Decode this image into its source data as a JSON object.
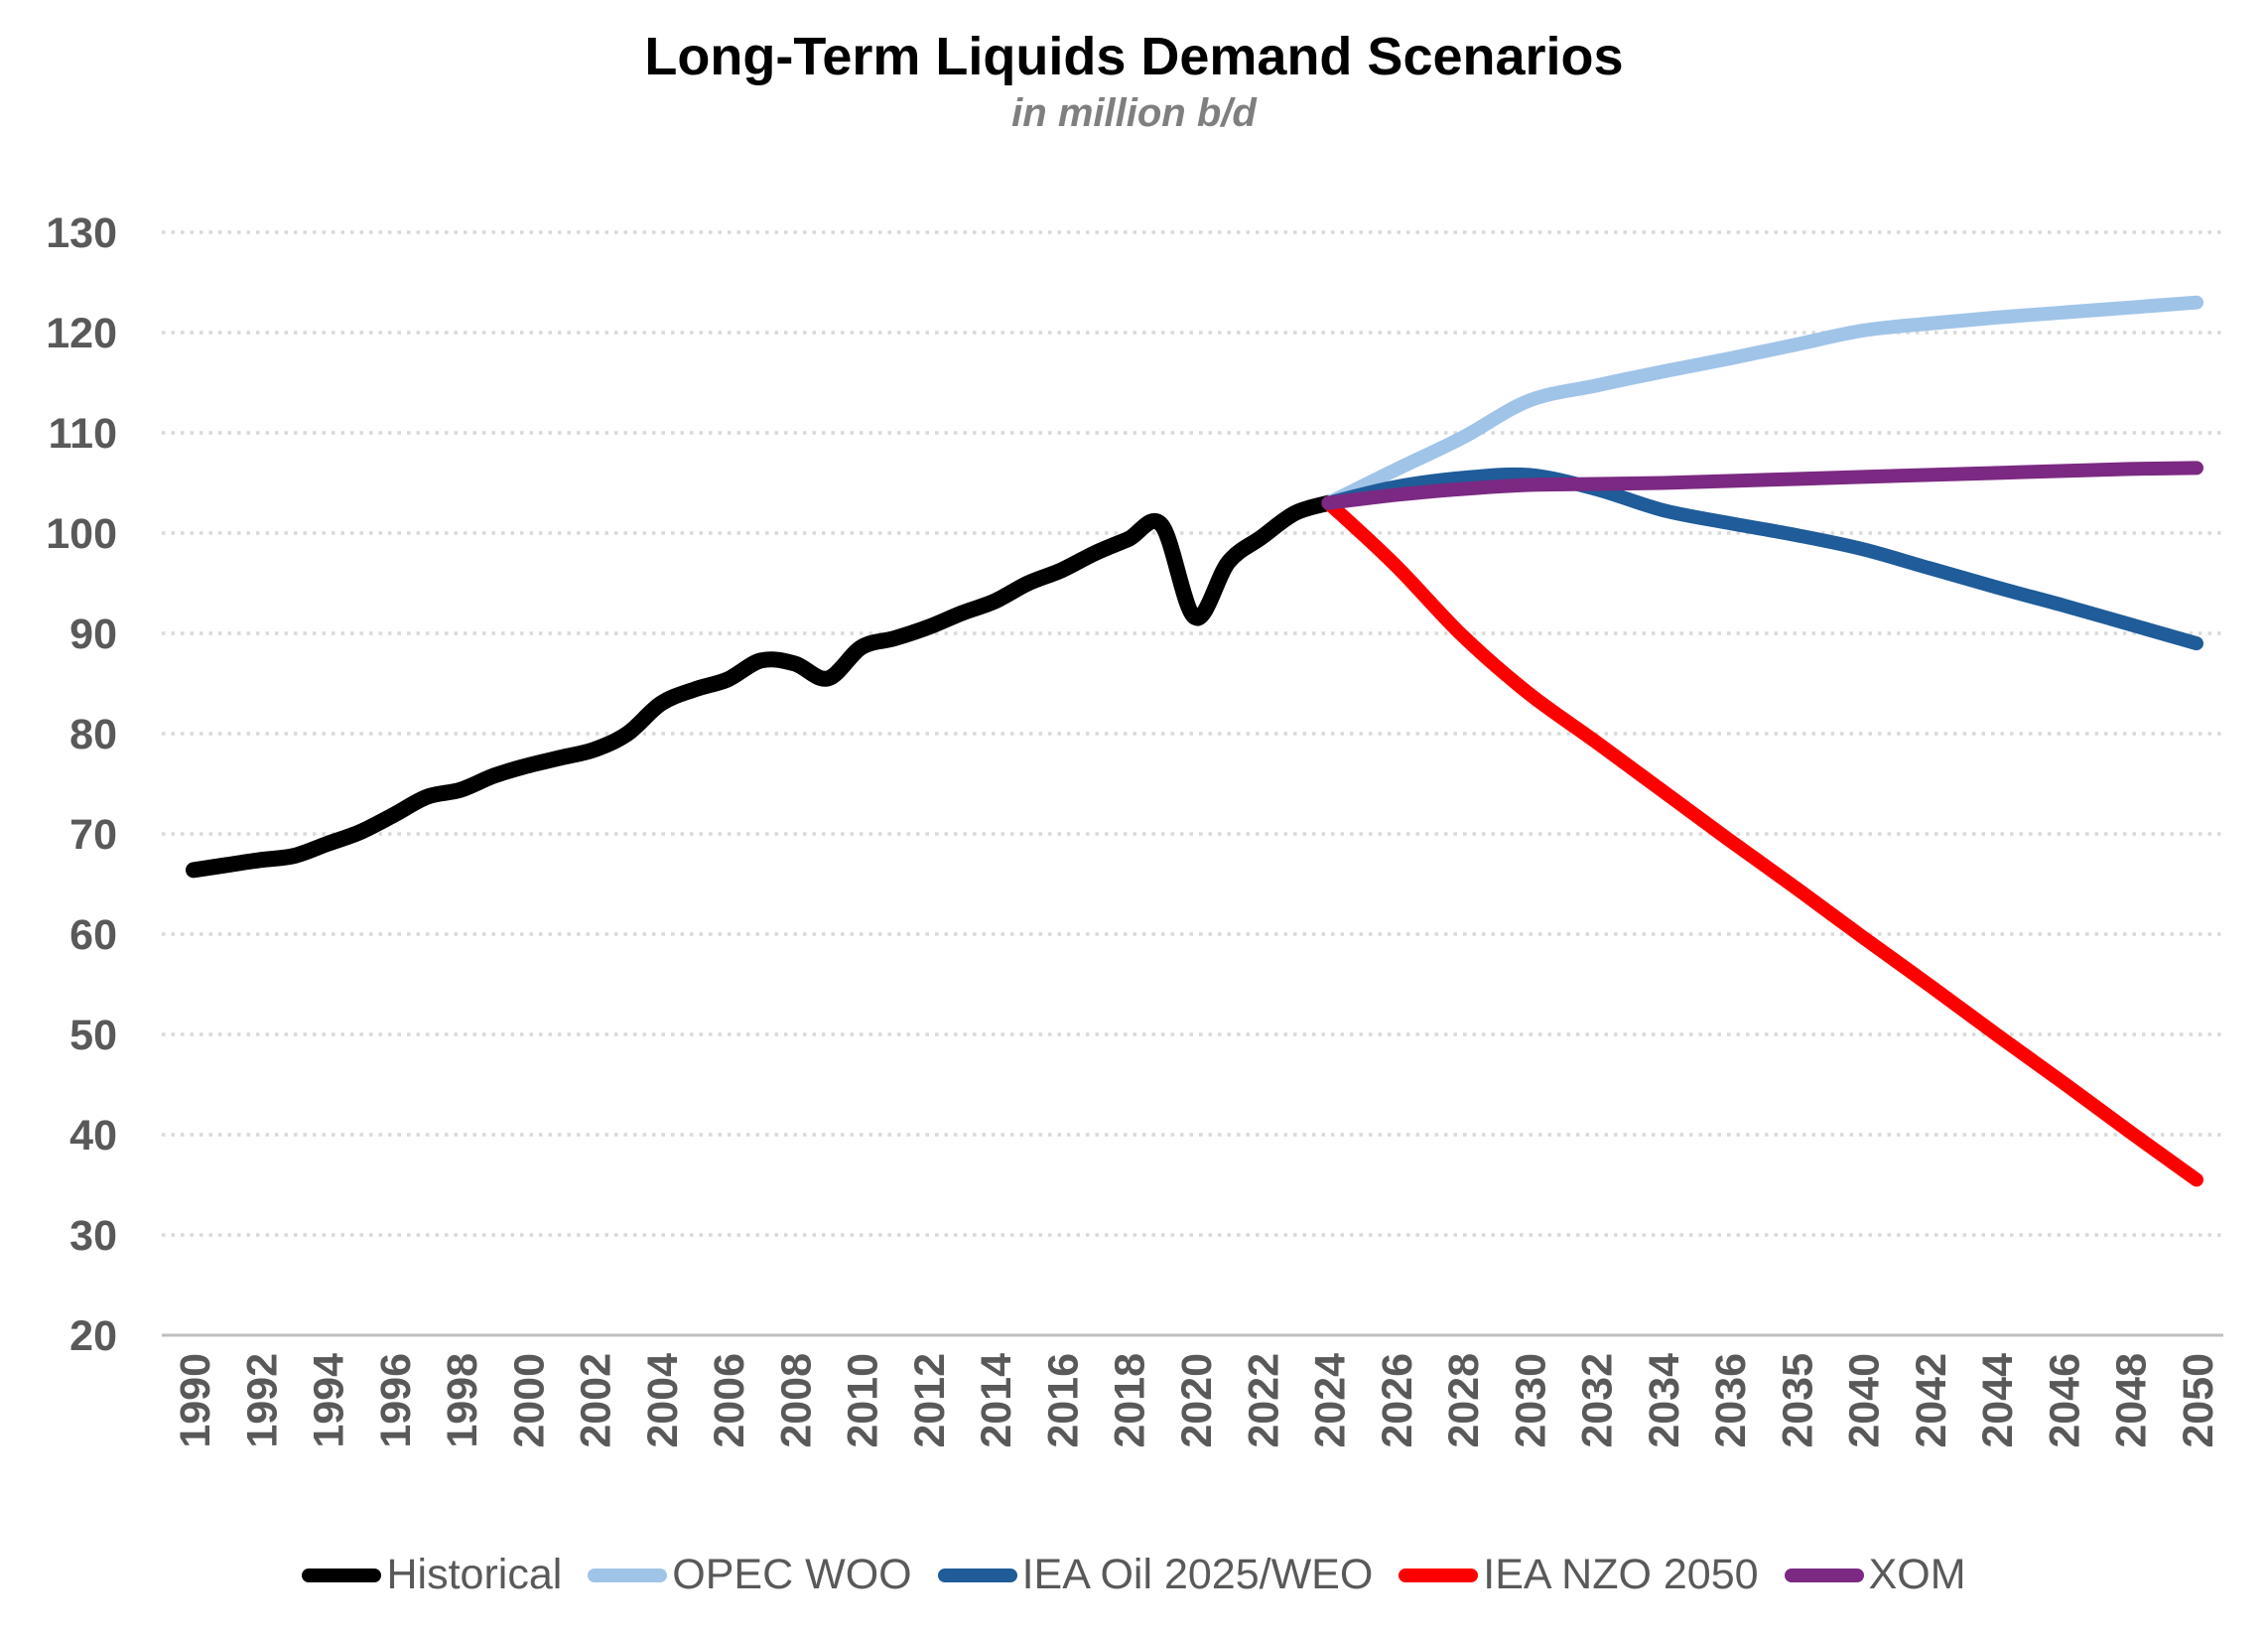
{
  "title": "Long-Term Liquids Demand Scenarios",
  "subtitle": "in million b/d",
  "chart_data": {
    "type": "line",
    "title": "Long-Term Liquids Demand Scenarios",
    "subtitle": "in million b/d",
    "ylabel": "",
    "xlabel": "",
    "ylim": [
      20,
      130
    ],
    "y_ticks": [
      20,
      30,
      40,
      50,
      60,
      70,
      80,
      90,
      100,
      110,
      120,
      130
    ],
    "x_range": [
      1990,
      2050
    ],
    "x_tick_labels": [
      "1990",
      "1992",
      "1994",
      "1996",
      "1998",
      "2000",
      "2002",
      "2004",
      "2006",
      "2008",
      "2010",
      "2012",
      "2014",
      "2016",
      "2018",
      "2020",
      "2022",
      "2024",
      "2026",
      "2028",
      "2030",
      "2032",
      "2034",
      "2036",
      "2035",
      "2040",
      "2042",
      "2044",
      "2046",
      "2048",
      "2050"
    ],
    "grid": "horizontal-dotted",
    "grid_color": "#d9d9d9",
    "axis_line_color": "#bfbfbf",
    "tick_label_color": "#595959",
    "legend_position": "bottom",
    "series": [
      {
        "name": "Historical",
        "color": "#000000",
        "years": [
          1990,
          1991,
          1992,
          1993,
          1994,
          1995,
          1996,
          1997,
          1998,
          1999,
          2000,
          2001,
          2002,
          2003,
          2004,
          2005,
          2006,
          2007,
          2008,
          2009,
          2010,
          2011,
          2012,
          2013,
          2014,
          2015,
          2016,
          2017,
          2018,
          2019,
          2020,
          2021,
          2022,
          2023,
          2024
        ],
        "values": [
          66.4,
          66.9,
          67.4,
          67.8,
          69.0,
          70.2,
          71.9,
          73.7,
          74.4,
          75.8,
          76.8,
          77.6,
          78.4,
          80.0,
          83.0,
          84.4,
          85.4,
          87.3,
          87.0,
          85.5,
          88.6,
          89.5,
          90.6,
          92.0,
          93.2,
          95.0,
          96.3,
          98.0,
          99.4,
          100.8,
          91.6,
          97.1,
          99.6,
          102.0,
          103.0
        ]
      },
      {
        "name": "OPEC WOO",
        "color": "#a0c4e8",
        "years": [
          2024,
          2026,
          2028,
          2030,
          2032,
          2034,
          2036,
          2038,
          2040,
          2042,
          2044,
          2046,
          2048,
          2050
        ],
        "values": [
          103.0,
          106.3,
          109.5,
          113.2,
          114.7,
          116.1,
          117.4,
          118.8,
          120.2,
          120.9,
          121.5,
          122.0,
          122.5,
          123.0
        ]
      },
      {
        "name": "IEA Oil 2025/WEO",
        "color": "#1f5c99",
        "years": [
          2024,
          2026,
          2028,
          2030,
          2032,
          2034,
          2036,
          2038,
          2040,
          2042,
          2044,
          2046,
          2048,
          2050
        ],
        "values": [
          103.0,
          104.6,
          105.5,
          105.8,
          104.4,
          102.3,
          101.0,
          99.8,
          98.4,
          96.5,
          94.6,
          92.8,
          90.9,
          89.0
        ]
      },
      {
        "name": "IEA NZO 2050",
        "color": "#ff0000",
        "years": [
          2024,
          2026,
          2028,
          2030,
          2032,
          2034,
          2036,
          2038,
          2040,
          2042,
          2044,
          2046,
          2048,
          2050
        ],
        "values": [
          103.0,
          96.8,
          89.8,
          84.0,
          79.2,
          74.3,
          69.4,
          64.6,
          59.7,
          54.9,
          50.0,
          45.2,
          40.3,
          35.5
        ]
      },
      {
        "name": "XOM",
        "color": "#7b2982",
        "years": [
          2024,
          2026,
          2028,
          2030,
          2032,
          2034,
          2036,
          2038,
          2040,
          2042,
          2044,
          2046,
          2048,
          2050
        ],
        "values": [
          103.0,
          103.8,
          104.4,
          104.8,
          104.9,
          105.0,
          105.2,
          105.4,
          105.6,
          105.8,
          106.0,
          106.2,
          106.4,
          106.5
        ]
      }
    ]
  }
}
